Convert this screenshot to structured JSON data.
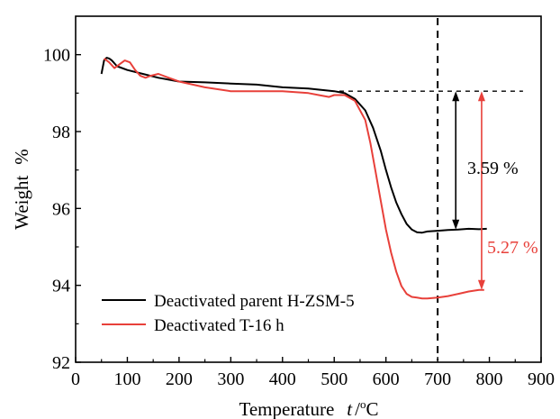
{
  "chart_data": {
    "type": "line",
    "xlabel": "Temperature",
    "xlabel_var": "t",
    "xlabel_unit_sep": "/",
    "xlabel_unit_sup": "o",
    "xlabel_unit": "C",
    "ylabel": "Weight",
    "ylabel_unit": "%",
    "xlim": [
      0,
      900
    ],
    "ylim": [
      92,
      101
    ],
    "xticks": [
      "0",
      "100",
      "200",
      "300",
      "400",
      "500",
      "600",
      "700",
      "800",
      "900"
    ],
    "yticks": [
      "92",
      "94",
      "96",
      "98",
      "100"
    ],
    "legend_position": "bottom-left",
    "colors": {
      "black": "#000000",
      "red": "#e8403a"
    },
    "series": [
      {
        "name": "Deactivated parent H-ZSM-5",
        "color": "#000000",
        "x": [
          50,
          55,
          60,
          65,
          70,
          80,
          100,
          130,
          160,
          200,
          250,
          300,
          350,
          400,
          450,
          500,
          520,
          540,
          560,
          575,
          590,
          600,
          610,
          620,
          630,
          640,
          650,
          660,
          670,
          680,
          700,
          720,
          740,
          760,
          780,
          795
        ],
        "y": [
          99.5,
          99.85,
          99.92,
          99.9,
          99.85,
          99.7,
          99.6,
          99.5,
          99.4,
          99.3,
          99.28,
          99.25,
          99.22,
          99.15,
          99.12,
          99.05,
          99.0,
          98.85,
          98.55,
          98.1,
          97.5,
          97.0,
          96.55,
          96.15,
          95.85,
          95.6,
          95.45,
          95.38,
          95.37,
          95.4,
          95.42,
          95.44,
          95.45,
          95.47,
          95.46,
          95.47
        ]
      },
      {
        "name": "Deactivated T-16 h",
        "color": "#e8403a",
        "x": [
          55,
          65,
          75,
          85,
          95,
          105,
          115,
          125,
          135,
          145,
          160,
          180,
          200,
          250,
          300,
          350,
          400,
          450,
          470,
          490,
          500,
          520,
          540,
          560,
          570,
          580,
          590,
          600,
          610,
          620,
          630,
          640,
          650,
          660,
          670,
          680,
          700,
          720,
          740,
          760,
          780,
          790
        ],
        "y": [
          99.9,
          99.8,
          99.65,
          99.75,
          99.85,
          99.8,
          99.6,
          99.45,
          99.4,
          99.45,
          99.5,
          99.4,
          99.3,
          99.15,
          99.05,
          99.05,
          99.05,
          99.0,
          98.95,
          98.9,
          98.95,
          98.95,
          98.8,
          98.3,
          97.7,
          96.95,
          96.2,
          95.45,
          94.85,
          94.35,
          93.98,
          93.78,
          93.7,
          93.68,
          93.66,
          93.66,
          93.68,
          93.72,
          93.78,
          93.84,
          93.88,
          93.88
        ]
      }
    ],
    "annotations": [
      {
        "text": "3.59 %",
        "color": "#000000"
      },
      {
        "text": "5.27 %",
        "color": "#e8403a"
      }
    ],
    "reference_lines": {
      "vertical_x": 700,
      "horizontal_y": 99.05,
      "black_arrow": {
        "x": 735,
        "from": 99.05,
        "to": 95.45
      },
      "red_arrow": {
        "x": 785,
        "from": 99.05,
        "to": 93.88
      }
    }
  }
}
